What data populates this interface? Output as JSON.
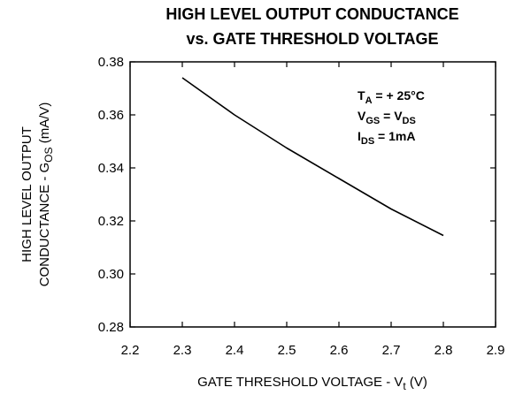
{
  "chart_data": {
    "type": "line",
    "title_line1": "HIGH LEVEL OUTPUT CONDUCTANCE",
    "title_line2": "vs. GATE THRESHOLD VOLTAGE",
    "xlabel": {
      "main": "GATE THRESHOLD VOLTAGE - V",
      "sub": "t",
      "unit": " (V)"
    },
    "ylabel": {
      "line1": "HIGH LEVEL OUTPUT",
      "line2_main": "CONDUCTANCE - G",
      "line2_sub": "OS",
      "line2_unit": " (mA/V)"
    },
    "xlim": [
      2.2,
      2.9
    ],
    "ylim": [
      0.28,
      0.38
    ],
    "x_ticks": [
      "2.2",
      "2.3",
      "2.4",
      "2.5",
      "2.6",
      "2.7",
      "2.8",
      "2.9"
    ],
    "y_ticks": [
      "0.28",
      "0.30",
      "0.32",
      "0.34",
      "0.36",
      "0.38"
    ],
    "grid": false,
    "series": [
      {
        "x": [
          2.3,
          2.4,
          2.5,
          2.6,
          2.7,
          2.8
        ],
        "y": [
          0.374,
          0.36,
          0.3475,
          0.336,
          0.3245,
          0.3145
        ]
      }
    ],
    "annotations": [
      {
        "main": "T",
        "sub": "A",
        "rest": " = + 25°C"
      },
      {
        "main": "V",
        "sub": "GS",
        "rest": " = V",
        "sub2": "DS"
      },
      {
        "main": "I",
        "sub": "DS",
        "rest": " = 1mA"
      }
    ],
    "colors": {
      "line": "#000000",
      "axes": "#000000"
    }
  }
}
